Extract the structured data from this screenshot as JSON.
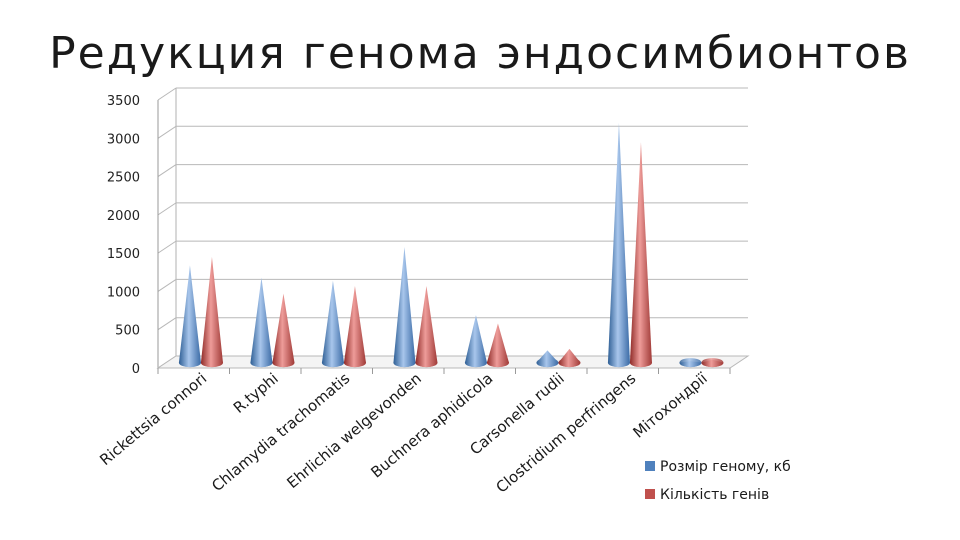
{
  "slide": {
    "title": "Редукция генома эндосимбионтов"
  },
  "chart_data": {
    "type": "bar",
    "bar_shape": "cone",
    "categories": [
      "Rickettsia connori",
      "R.typhi",
      "Chlamydia  trachomatis",
      "Ehrlichia welgevonden",
      "Buchnera aphidicola",
      "Carsonella rudii",
      "Clostridium perfringens",
      "Мітохондрії"
    ],
    "series": [
      {
        "name": "Розмір геному, кб",
        "color": "#4f81bd",
        "values": [
          1270,
          1110,
          1070,
          1510,
          620,
          160,
          3130,
          20
        ]
      },
      {
        "name": "Кількість генів",
        "color": "#c0504d",
        "values": [
          1380,
          900,
          1000,
          1000,
          510,
          180,
          2880,
          37
        ]
      }
    ],
    "ylim": [
      0,
      3500
    ],
    "yticks": [
      0,
      500,
      1000,
      1500,
      2000,
      2500,
      3000,
      3500
    ],
    "grid": true,
    "legend": "bottom-right"
  }
}
